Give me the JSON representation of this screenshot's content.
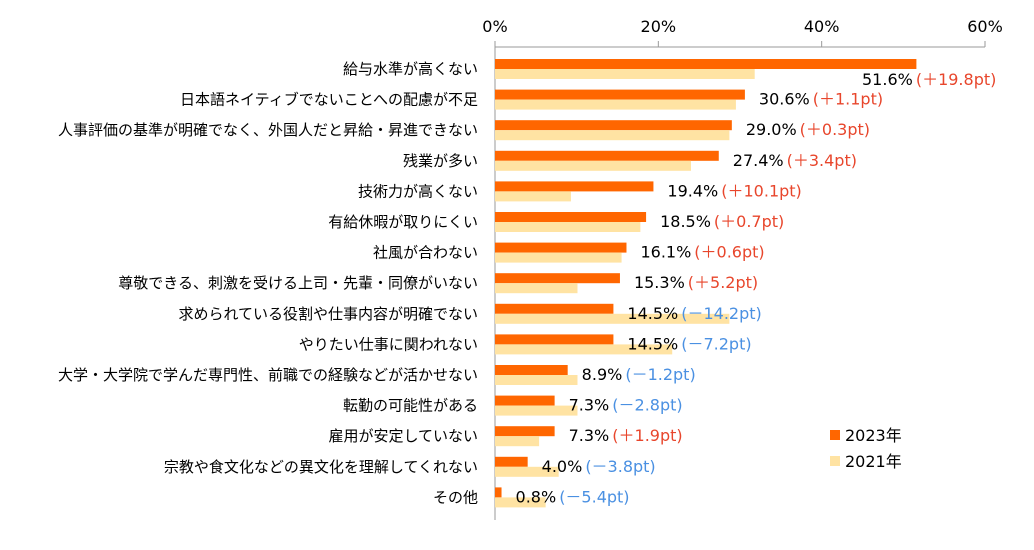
{
  "chart_data": {
    "type": "bar",
    "orientation": "horizontal",
    "xlim": [
      0,
      60
    ],
    "ticks": [
      "0%",
      "20%",
      "40%",
      "60%"
    ],
    "grid": false,
    "legend_position": "bottom-right",
    "categories": [
      "給与水準が高くない",
      "日本語ネイティブでないことへの配慮が不足",
      "人事評価の基準が明確でなく、外国人だと昇給・昇進できない",
      "残業が多い",
      "技術力が高くない",
      "有給休暇が取りにくい",
      "社風が合わない",
      "尊敬できる、刺激を受ける上司・先輩・同僚がいない",
      "求められている役割や仕事内容が明確でない",
      "やりたい仕事に関われない",
      "大学・大学院で学んだ専門性、前職での経験などが活かせない",
      "転勤の可能性がある",
      "雇用が安定していない",
      "宗教や食文化などの異文化を理解してくれない",
      "その他"
    ],
    "series": [
      {
        "name": "2023年",
        "color": "#FF6600",
        "values": [
          51.6,
          30.6,
          29.0,
          27.4,
          19.4,
          18.5,
          16.1,
          15.3,
          14.5,
          14.5,
          8.9,
          7.3,
          7.3,
          4.0,
          0.8
        ]
      },
      {
        "name": "2021年",
        "color": "#FFE3A3",
        "values": [
          31.8,
          29.5,
          28.7,
          24.0,
          9.3,
          17.8,
          15.5,
          10.1,
          28.7,
          21.7,
          10.1,
          10.1,
          5.4,
          7.8,
          6.2
        ]
      }
    ],
    "value_labels": [
      "51.6%",
      "30.6%",
      "29.0%",
      "27.4%",
      "19.4%",
      "18.5%",
      "16.1%",
      "15.3%",
      "14.5%",
      "14.5%",
      "8.9%",
      "7.3%",
      "7.3%",
      "4.0%",
      "0.8%"
    ],
    "diff_labels": [
      "(＋19.8pt)",
      "(＋1.1pt)",
      "(＋0.3pt)",
      "(＋3.4pt)",
      "(＋10.1pt)",
      "(＋0.7pt)",
      "(＋0.6pt)",
      "(＋5.2pt)",
      "(－14.2pt)",
      "(－7.2pt)",
      "(－1.2pt)",
      "(－2.8pt)",
      "(＋1.9pt)",
      "(－3.8pt)",
      "(－5.4pt)"
    ],
    "diff_colors": {
      "positive": "#E8462C",
      "negative": "#4A90E2"
    }
  }
}
